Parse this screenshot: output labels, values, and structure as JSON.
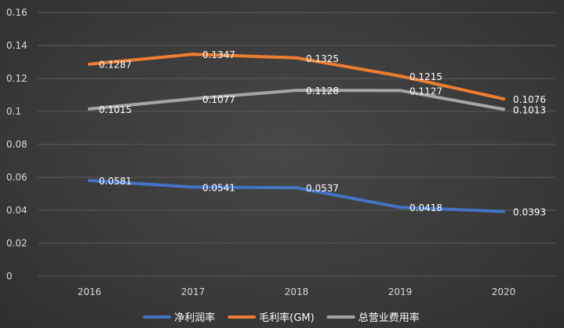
{
  "chart_data": {
    "type": "line",
    "categories": [
      "2016",
      "2017",
      "2018",
      "2019",
      "2020"
    ],
    "ylim": [
      0,
      0.16
    ],
    "y_ticks": [
      "0",
      "0.02",
      "0.04",
      "0.06",
      "0.08",
      "0.1",
      "0.12",
      "0.14",
      "0.16"
    ],
    "grid": true,
    "legend_position": "bottom",
    "series": [
      {
        "name": "净利润率",
        "color": "#4472c4",
        "values": [
          0.0581,
          0.0541,
          0.0537,
          0.0418,
          0.0393
        ],
        "labels": [
          "0.0581",
          "0.0541",
          "0.0537",
          "0.0418",
          "0.0393"
        ]
      },
      {
        "name": "毛利率(GM)",
        "color": "#ed7d31",
        "values": [
          0.1287,
          0.1347,
          0.1325,
          0.1215,
          0.1076
        ],
        "labels": [
          "0.1287",
          "0.1347",
          "0.1325",
          "0.1215",
          "0.1076"
        ]
      },
      {
        "name": "总营业费用率",
        "color": "#a5a5a5",
        "values": [
          0.1015,
          0.1077,
          0.1128,
          0.1127,
          0.1013
        ],
        "labels": [
          "0.1015",
          "0.1077",
          "0.1128",
          "0.1127",
          "0.1013"
        ]
      }
    ]
  }
}
